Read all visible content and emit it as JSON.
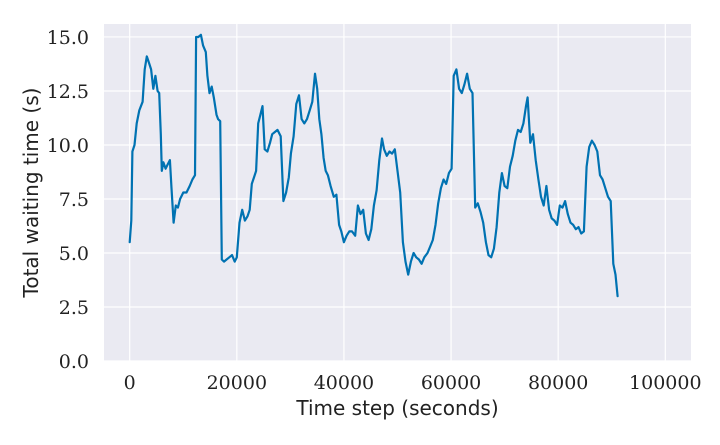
{
  "chart_data": {
    "type": "line",
    "title": "",
    "xlabel": "Time step (seconds)",
    "ylabel": "Total waiting time (s)",
    "xlim": [
      -4800,
      104800
    ],
    "ylim": [
      0,
      15.6
    ],
    "x_ticks": [
      0,
      20000,
      40000,
      60000,
      80000,
      100000
    ],
    "x_tick_labels": [
      "0",
      "20000",
      "40000",
      "60000",
      "80000",
      "100000"
    ],
    "y_ticks": [
      0,
      2.5,
      5,
      7.5,
      10,
      12.5,
      15
    ],
    "y_tick_labels": [
      "0.0",
      "2.5",
      "5.0",
      "7.5",
      "10.0",
      "12.5",
      "15.0"
    ],
    "grid": true,
    "series": [
      {
        "name": "Total waiting time",
        "color": "#0072b2",
        "points": [
          [
            0,
            5.5
          ],
          [
            300,
            6.5
          ],
          [
            500,
            9.7
          ],
          [
            900,
            10.0
          ],
          [
            1300,
            11.0
          ],
          [
            1800,
            11.6
          ],
          [
            2400,
            12.0
          ],
          [
            2800,
            13.5
          ],
          [
            3200,
            14.1
          ],
          [
            3600,
            13.8
          ],
          [
            4000,
            13.5
          ],
          [
            4400,
            12.6
          ],
          [
            4800,
            13.2
          ],
          [
            5200,
            12.5
          ],
          [
            5500,
            12.4
          ],
          [
            5800,
            10.5
          ],
          [
            6000,
            8.8
          ],
          [
            6300,
            9.2
          ],
          [
            6700,
            8.9
          ],
          [
            7100,
            9.1
          ],
          [
            7500,
            9.3
          ],
          [
            7800,
            8.0
          ],
          [
            8200,
            6.4
          ],
          [
            8600,
            7.2
          ],
          [
            9000,
            7.1
          ],
          [
            9400,
            7.5
          ],
          [
            10000,
            7.8
          ],
          [
            10600,
            7.8
          ],
          [
            11200,
            8.1
          ],
          [
            11700,
            8.4
          ],
          [
            12200,
            8.6
          ],
          [
            12400,
            15.0
          ],
          [
            12800,
            15.0
          ],
          [
            13300,
            15.1
          ],
          [
            13700,
            14.6
          ],
          [
            14200,
            14.3
          ],
          [
            14500,
            13.2
          ],
          [
            14900,
            12.4
          ],
          [
            15300,
            12.7
          ],
          [
            15700,
            12.2
          ],
          [
            16200,
            11.4
          ],
          [
            16500,
            11.2
          ],
          [
            16900,
            11.1
          ],
          [
            17200,
            4.7
          ],
          [
            17600,
            4.6
          ],
          [
            18100,
            4.7
          ],
          [
            18600,
            4.8
          ],
          [
            19100,
            4.9
          ],
          [
            19600,
            4.6
          ],
          [
            20000,
            4.8
          ],
          [
            20500,
            6.4
          ],
          [
            21000,
            7.0
          ],
          [
            21500,
            6.5
          ],
          [
            22000,
            6.7
          ],
          [
            22400,
            7.0
          ],
          [
            22800,
            8.2
          ],
          [
            23200,
            8.5
          ],
          [
            23600,
            8.8
          ],
          [
            24000,
            11.0
          ],
          [
            24400,
            11.4
          ],
          [
            24800,
            11.8
          ],
          [
            25200,
            9.8
          ],
          [
            25700,
            9.7
          ],
          [
            26200,
            10.1
          ],
          [
            26600,
            10.5
          ],
          [
            27100,
            10.6
          ],
          [
            27600,
            10.7
          ],
          [
            28200,
            10.4
          ],
          [
            28700,
            7.4
          ],
          [
            29200,
            7.8
          ],
          [
            29700,
            8.5
          ],
          [
            30100,
            9.6
          ],
          [
            30600,
            10.4
          ],
          [
            31100,
            11.9
          ],
          [
            31600,
            12.3
          ],
          [
            32100,
            11.2
          ],
          [
            32600,
            11.0
          ],
          [
            33100,
            11.2
          ],
          [
            33600,
            11.6
          ],
          [
            34100,
            12.0
          ],
          [
            34600,
            13.3
          ],
          [
            35000,
            12.6
          ],
          [
            35400,
            11.2
          ],
          [
            35800,
            10.5
          ],
          [
            36200,
            9.4
          ],
          [
            36600,
            8.8
          ],
          [
            37000,
            8.6
          ],
          [
            37500,
            8.1
          ],
          [
            38100,
            7.6
          ],
          [
            38600,
            7.7
          ],
          [
            39100,
            6.3
          ],
          [
            39500,
            6.0
          ],
          [
            40000,
            5.5
          ],
          [
            40500,
            5.8
          ],
          [
            41000,
            6.0
          ],
          [
            41500,
            6.0
          ],
          [
            42100,
            5.8
          ],
          [
            42600,
            7.2
          ],
          [
            43100,
            6.8
          ],
          [
            43600,
            7.0
          ],
          [
            44100,
            5.9
          ],
          [
            44600,
            5.6
          ],
          [
            45100,
            6.1
          ],
          [
            45600,
            7.2
          ],
          [
            46100,
            7.9
          ],
          [
            46600,
            9.3
          ],
          [
            47100,
            10.3
          ],
          [
            47500,
            9.8
          ],
          [
            48000,
            9.5
          ],
          [
            48500,
            9.7
          ],
          [
            49000,
            9.6
          ],
          [
            49500,
            9.8
          ],
          [
            50000,
            8.8
          ],
          [
            50500,
            7.8
          ],
          [
            51000,
            5.5
          ],
          [
            51500,
            4.6
          ],
          [
            52000,
            4.0
          ],
          [
            52500,
            4.6
          ],
          [
            53000,
            5.0
          ],
          [
            53500,
            4.8
          ],
          [
            54000,
            4.7
          ],
          [
            54500,
            4.5
          ],
          [
            55000,
            4.8
          ],
          [
            55600,
            5.0
          ],
          [
            56100,
            5.3
          ],
          [
            56600,
            5.6
          ],
          [
            57100,
            6.3
          ],
          [
            57600,
            7.3
          ],
          [
            58100,
            8.0
          ],
          [
            58600,
            8.4
          ],
          [
            59100,
            8.2
          ],
          [
            59600,
            8.7
          ],
          [
            60100,
            8.9
          ],
          [
            60500,
            13.2
          ],
          [
            61000,
            13.5
          ],
          [
            61500,
            12.6
          ],
          [
            62000,
            12.4
          ],
          [
            62500,
            12.8
          ],
          [
            63000,
            13.3
          ],
          [
            63500,
            12.6
          ],
          [
            64000,
            12.4
          ],
          [
            64500,
            7.1
          ],
          [
            65000,
            7.3
          ],
          [
            65500,
            6.9
          ],
          [
            66000,
            6.4
          ],
          [
            66500,
            5.5
          ],
          [
            67000,
            4.9
          ],
          [
            67500,
            4.8
          ],
          [
            68000,
            5.2
          ],
          [
            68500,
            6.2
          ],
          [
            69000,
            7.8
          ],
          [
            69500,
            8.7
          ],
          [
            70000,
            8.1
          ],
          [
            70500,
            8.0
          ],
          [
            71000,
            9.0
          ],
          [
            71500,
            9.5
          ],
          [
            72000,
            10.2
          ],
          [
            72500,
            10.7
          ],
          [
            73000,
            10.6
          ],
          [
            73500,
            11.0
          ],
          [
            74000,
            11.8
          ],
          [
            74300,
            12.2
          ],
          [
            74800,
            10.1
          ],
          [
            75300,
            10.5
          ],
          [
            75800,
            9.3
          ],
          [
            76300,
            8.4
          ],
          [
            76800,
            7.6
          ],
          [
            77300,
            7.2
          ],
          [
            77800,
            8.1
          ],
          [
            78300,
            7.0
          ],
          [
            78800,
            6.6
          ],
          [
            79300,
            6.5
          ],
          [
            79800,
            6.3
          ],
          [
            80300,
            7.2
          ],
          [
            80800,
            7.1
          ],
          [
            81300,
            7.4
          ],
          [
            81800,
            6.8
          ],
          [
            82300,
            6.4
          ],
          [
            82800,
            6.3
          ],
          [
            83300,
            6.1
          ],
          [
            83800,
            6.2
          ],
          [
            84300,
            5.9
          ],
          [
            84800,
            6.0
          ],
          [
            85300,
            9.0
          ],
          [
            85800,
            9.9
          ],
          [
            86300,
            10.2
          ],
          [
            86800,
            10.0
          ],
          [
            87300,
            9.7
          ],
          [
            87800,
            8.6
          ],
          [
            88300,
            8.4
          ],
          [
            88800,
            8.0
          ],
          [
            89300,
            7.6
          ],
          [
            89800,
            7.4
          ],
          [
            90300,
            4.5
          ],
          [
            90700,
            4.0
          ],
          [
            91100,
            3.0
          ]
        ]
      }
    ]
  }
}
